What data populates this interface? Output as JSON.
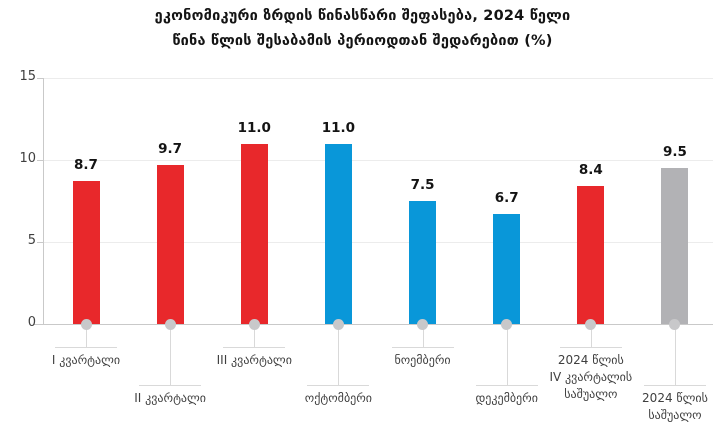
{
  "chart_data": {
    "type": "bar",
    "title": "ეკონომიკური ზრდის წინასწარი შეფასება, 2024 წელი",
    "subtitle": "წინა წლის შესაბამის პერიოდთან შედარებით (%)",
    "ylabel": "",
    "xlabel": "",
    "ylim": [
      0,
      15
    ],
    "yticks": [
      0,
      5,
      10,
      15
    ],
    "grid": true,
    "legend": "none",
    "categories": [
      "I კვარტალი",
      "II კვარტალი",
      "III კვარტალი",
      "ოქტომბერი",
      "ნოემბერი",
      "დეკემბერი",
      "2024 წლის IV კვარტალის საშუალო",
      "2024 წლის საშუალო"
    ],
    "values": [
      8.7,
      9.7,
      11.0,
      11.0,
      7.5,
      6.7,
      8.4,
      9.5
    ],
    "bars": [
      {
        "label_lines": [
          "I კვარტალი"
        ],
        "value": 8.7,
        "display": "8.7",
        "color": "red",
        "label_level": "upper"
      },
      {
        "label_lines": [
          "II კვარტალი"
        ],
        "value": 9.7,
        "display": "9.7",
        "color": "red",
        "label_level": "lower"
      },
      {
        "label_lines": [
          "III კვარტალი"
        ],
        "value": 11.0,
        "display": "11.0",
        "color": "red",
        "label_level": "upper"
      },
      {
        "label_lines": [
          "ოქტომბერი"
        ],
        "value": 11.0,
        "display": "11.0",
        "color": "blue",
        "label_level": "lower"
      },
      {
        "label_lines": [
          "ნოემბერი"
        ],
        "value": 7.5,
        "display": "7.5",
        "color": "blue",
        "label_level": "upper"
      },
      {
        "label_lines": [
          "დეკემბერი"
        ],
        "value": 6.7,
        "display": "6.7",
        "color": "blue",
        "label_level": "lower"
      },
      {
        "label_lines": [
          "2024 წლის",
          "IV კვარტალის",
          "საშუალო"
        ],
        "value": 8.4,
        "display": "8.4",
        "color": "red",
        "label_level": "upper"
      },
      {
        "label_lines": [
          "2024 წლის",
          "საშუალო"
        ],
        "value": 9.5,
        "display": "9.5",
        "color": "gray",
        "label_level": "lower"
      }
    ],
    "palette": {
      "red": "#E8282B",
      "blue": "#0997D9",
      "gray": "#B2B2B5"
    }
  }
}
